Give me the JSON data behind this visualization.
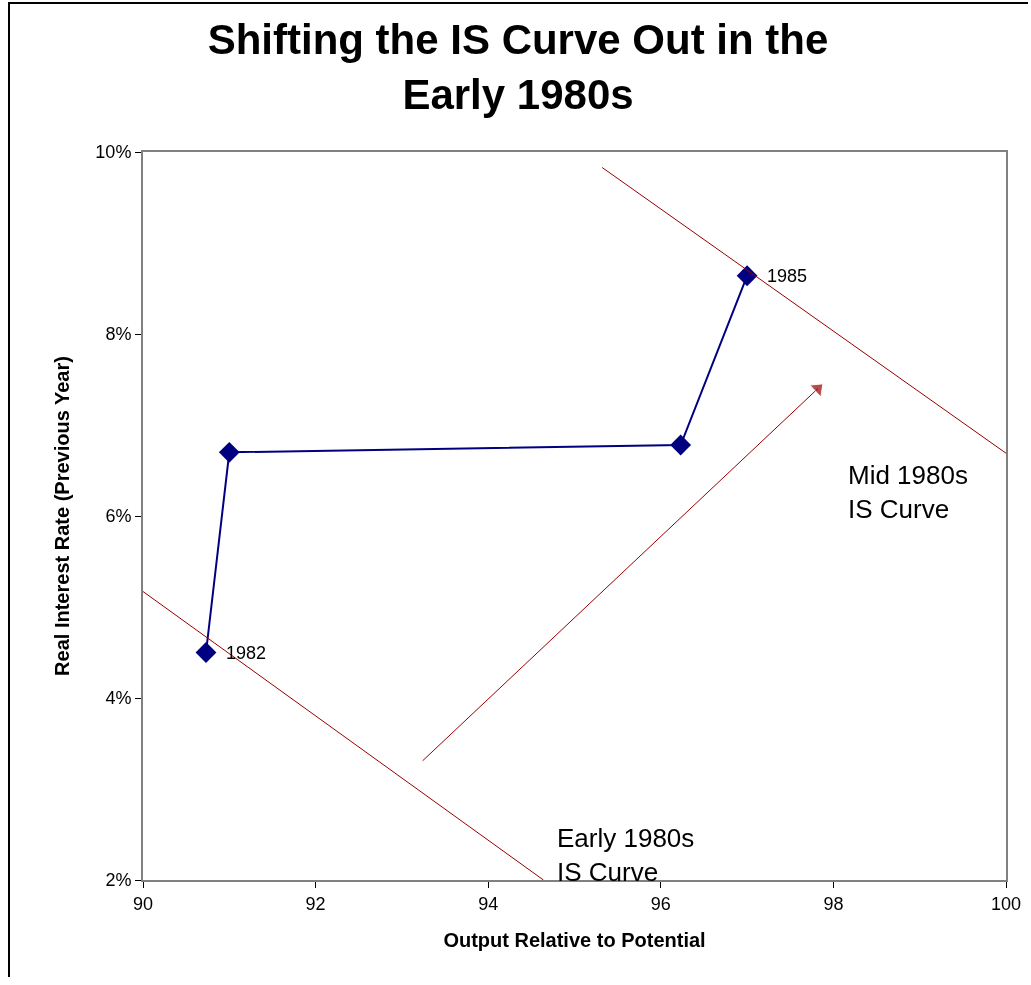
{
  "chart_data": {
    "type": "line",
    "title": "Shifting the IS Curve Out in the Early 1980s",
    "xlabel": "Output Relative to Potential",
    "ylabel": "Real Interest Rate (Previous Year)",
    "xlim": [
      90,
      100
    ],
    "xticks": [
      90,
      92,
      94,
      96,
      98,
      100
    ],
    "ylim": [
      2,
      10
    ],
    "yticks": [
      {
        "value": 2,
        "label": "2%"
      },
      {
        "value": 4,
        "label": "4%"
      },
      {
        "value": 6,
        "label": "6%"
      },
      {
        "value": 8,
        "label": "8%"
      },
      {
        "value": 10,
        "label": "10%"
      }
    ],
    "grid": false,
    "series": [
      {
        "color": "#000080",
        "marker": "diamond",
        "x": [
          90.73,
          91.0,
          96.23,
          97.0
        ],
        "values": [
          4.5,
          6.7,
          6.78,
          8.64
        ]
      },
      {
        "color": "#990000",
        "marker": "none",
        "x": [
          90,
          94.64
        ],
        "values": [
          5.17,
          2
        ]
      },
      {
        "color": "#990000",
        "marker": "none",
        "x": [
          95.32,
          100
        ],
        "values": [
          9.83,
          6.69
        ]
      },
      {
        "color": "#990000",
        "marker": "triangle",
        "x": [
          93.24,
          97.82
        ],
        "values": [
          3.31,
          7.4
        ]
      }
    ],
    "annotations": [
      {
        "text": "1982",
        "x": 90.73,
        "y": 4.5
      },
      {
        "text": "1985",
        "x": 97.0,
        "y": 8.64
      },
      "Early 1980s\nIS Curve",
      "Mid 1980s\nIS Curve"
    ]
  }
}
